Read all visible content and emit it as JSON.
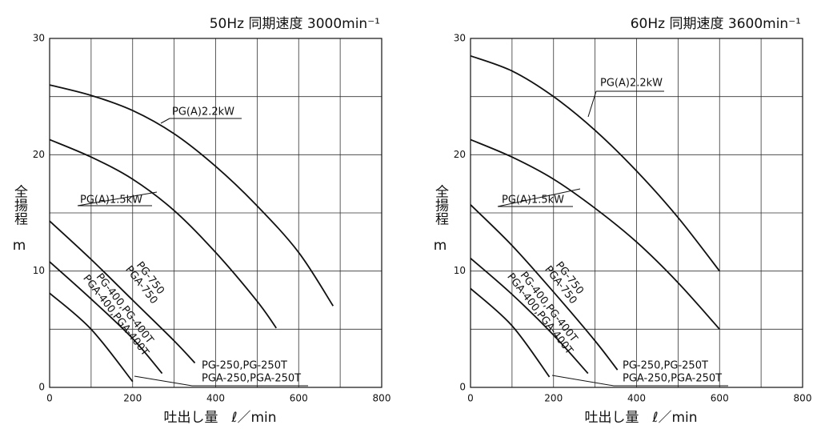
{
  "chart_data": [
    {
      "type": "line",
      "title": "50Hz 同期速度 3000min⁻¹",
      "xlabel": "吐出し量　ℓ／min",
      "ylabel": "全揚程",
      "yunit": "m",
      "xlim": [
        0,
        800
      ],
      "ylim": [
        0,
        30
      ],
      "xticks": [
        0,
        200,
        400,
        600,
        800
      ],
      "yticks": [
        0,
        10,
        20,
        30
      ],
      "xminor": [
        100,
        300,
        500,
        700
      ],
      "yminor": [
        5,
        15,
        25
      ],
      "grid": true,
      "color": "#111",
      "series": [
        {
          "labels": [
            "PG(A)2.2kW"
          ],
          "x": [
            0,
            100,
            200,
            300,
            400,
            500,
            600,
            683
          ],
          "values": [
            26,
            25.1,
            23.8,
            21.8,
            19,
            15.6,
            11.6,
            7
          ]
        },
        {
          "labels": [
            "PG(A)1.5kW"
          ],
          "x": [
            0,
            100,
            200,
            300,
            400,
            500,
            546
          ],
          "values": [
            21.3,
            19.8,
            17.9,
            15.2,
            11.6,
            7.4,
            5.1
          ]
        },
        {
          "labels": [
            "PG-750",
            "PGA-750"
          ],
          "x": [
            0,
            100,
            200,
            300,
            350
          ],
          "values": [
            14.3,
            11,
            7.5,
            4,
            2.1
          ]
        },
        {
          "labels": [
            "PG-400,PG-400T",
            "PGA-400,PGA-400T"
          ],
          "x": [
            0,
            100,
            200,
            271
          ],
          "values": [
            10.8,
            7.6,
            4.2,
            1.2
          ]
        },
        {
          "labels": [
            "PG-250,PG-250T",
            "PGA-250,PGA-250T"
          ],
          "x": [
            0,
            100,
            200
          ],
          "values": [
            8.1,
            5,
            0.5
          ]
        }
      ]
    },
    {
      "type": "line",
      "title": "60Hz 同期速度 3600min⁻¹",
      "xlabel": "吐出し量　ℓ／min",
      "ylabel": "全揚程",
      "yunit": "m",
      "xlim": [
        0,
        800
      ],
      "ylim": [
        0,
        30
      ],
      "xticks": [
        0,
        200,
        400,
        600,
        800
      ],
      "yticks": [
        0,
        10,
        20,
        30
      ],
      "xminor": [
        100,
        300,
        500,
        700
      ],
      "yminor": [
        5,
        15,
        25
      ],
      "grid": true,
      "color": "#111",
      "series": [
        {
          "labels": [
            "PG(A)2.2kW"
          ],
          "x": [
            0,
            100,
            200,
            300,
            400,
            500,
            600
          ],
          "values": [
            28.5,
            27.2,
            25,
            22.1,
            18.6,
            14.6,
            10
          ]
        },
        {
          "labels": [
            "PG(A)1.5kW"
          ],
          "x": [
            0,
            100,
            200,
            300,
            400,
            500,
            600
          ],
          "values": [
            21.3,
            19.8,
            17.9,
            15.4,
            12.5,
            9,
            5
          ]
        },
        {
          "labels": [
            "PG-750",
            "PGA-750"
          ],
          "x": [
            0,
            100,
            200,
            300,
            354
          ],
          "values": [
            15.7,
            12.2,
            8.2,
            4,
            1.5
          ]
        },
        {
          "labels": [
            "PG-400,PG-400T",
            "PGA-400,PGA-400T"
          ],
          "x": [
            0,
            100,
            200,
            283
          ],
          "values": [
            11.1,
            8,
            4.5,
            1.2
          ]
        },
        {
          "labels": [
            "PG-250,PG-250T",
            "PGA-250,PGA-250T"
          ],
          "x": [
            0,
            100,
            190
          ],
          "values": [
            8.5,
            5.3,
            0.9
          ]
        }
      ]
    }
  ]
}
